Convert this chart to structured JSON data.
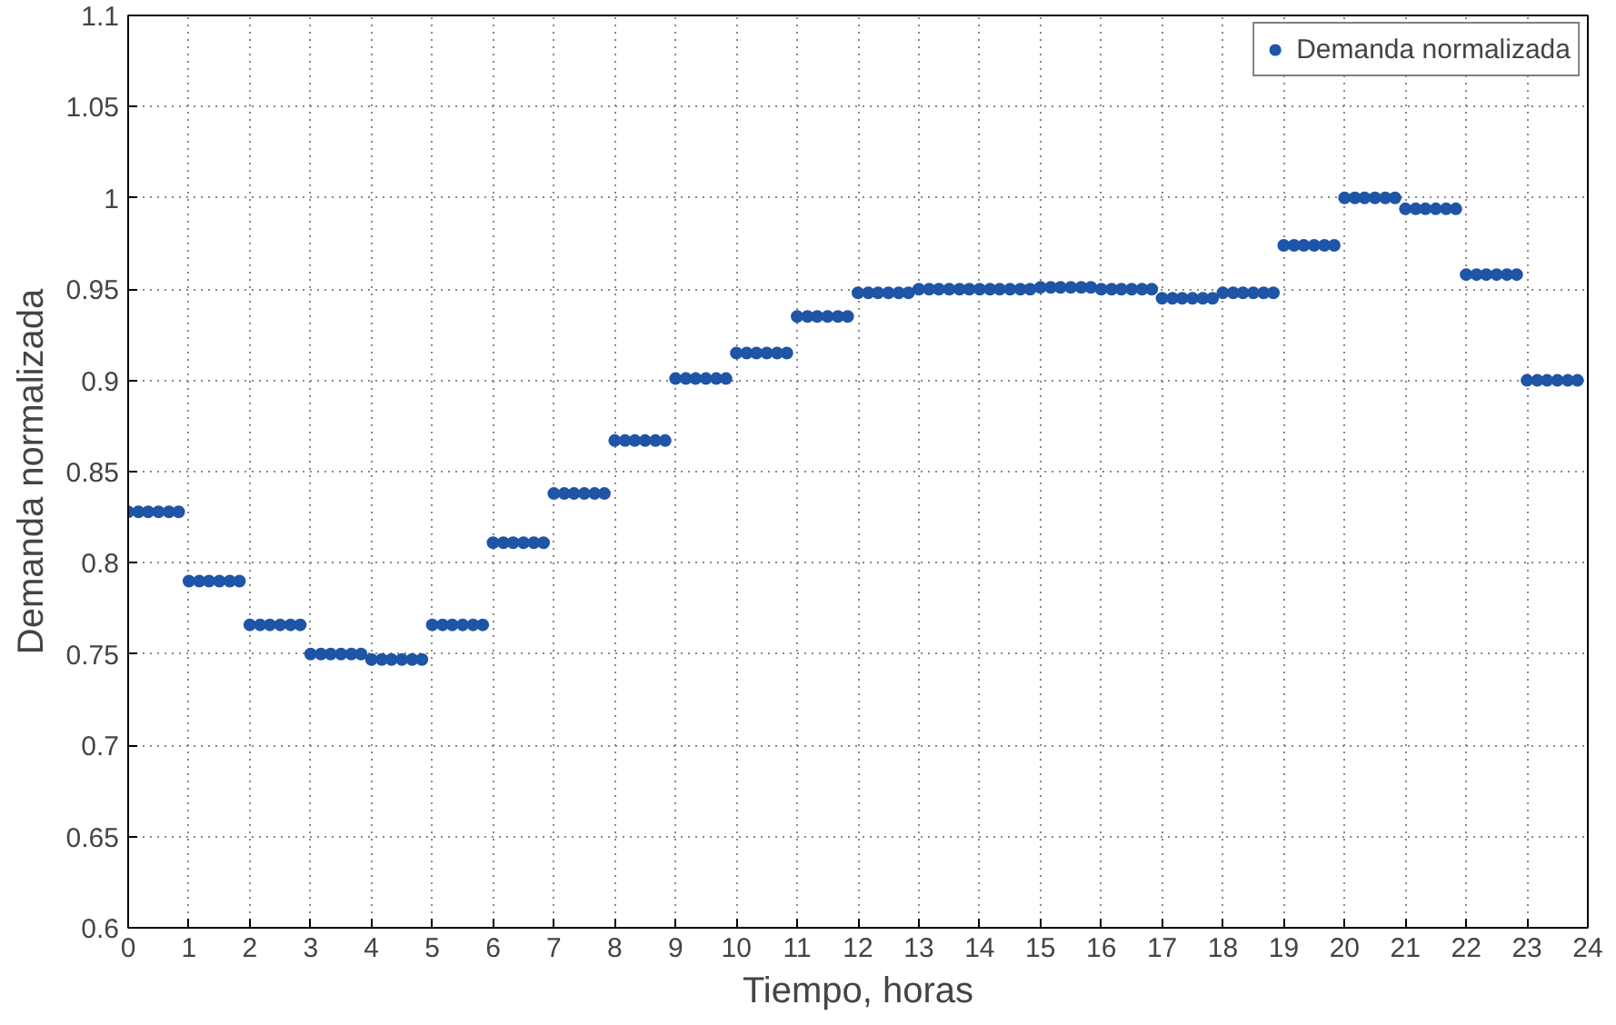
{
  "chart_data": {
    "type": "scatter",
    "xlabel": "Tiempo, horas",
    "ylabel": "Demanda normalizada",
    "xlim": [
      0,
      24
    ],
    "xticks": [
      0,
      1,
      2,
      3,
      4,
      5,
      6,
      7,
      8,
      9,
      10,
      11,
      12,
      13,
      14,
      15,
      16,
      17,
      18,
      19,
      20,
      21,
      22,
      23,
      24
    ],
    "ylim": [
      0.6,
      1.1
    ],
    "yticks": [
      0.6,
      0.65,
      0.7,
      0.75,
      0.8,
      0.85,
      0.9,
      0.95,
      1,
      1.05,
      1.1
    ],
    "grid": true,
    "legend": "top right",
    "marker": "circle",
    "series": [
      {
        "name": "Demanda normalizada",
        "color": "#1f55a6",
        "x": [
          0,
          0.17,
          0.33,
          0.5,
          0.67,
          0.83,
          1,
          1.17,
          1.33,
          1.5,
          1.67,
          1.83,
          2,
          2.17,
          2.33,
          2.5,
          2.67,
          2.83,
          3,
          3.17,
          3.33,
          3.5,
          3.67,
          3.83,
          4,
          4.17,
          4.33,
          4.5,
          4.67,
          4.83,
          5,
          5.17,
          5.33,
          5.5,
          5.67,
          5.83,
          6,
          6.17,
          6.33,
          6.5,
          6.67,
          6.83,
          7,
          7.17,
          7.33,
          7.5,
          7.67,
          7.83,
          8,
          8.17,
          8.33,
          8.5,
          8.67,
          8.83,
          9,
          9.17,
          9.33,
          9.5,
          9.67,
          9.83,
          10,
          10.17,
          10.33,
          10.5,
          10.67,
          10.83,
          11,
          11.17,
          11.33,
          11.5,
          11.67,
          11.83,
          12,
          12.17,
          12.33,
          12.5,
          12.67,
          12.83,
          13,
          13.17,
          13.33,
          13.5,
          13.67,
          13.83,
          14,
          14.17,
          14.33,
          14.5,
          14.67,
          14.83,
          15,
          15.17,
          15.33,
          15.5,
          15.67,
          15.83,
          16,
          16.17,
          16.33,
          16.5,
          16.67,
          16.83,
          17,
          17.17,
          17.33,
          17.5,
          17.67,
          17.83,
          18,
          18.17,
          18.33,
          18.5,
          18.67,
          18.83,
          19,
          19.17,
          19.33,
          19.5,
          19.67,
          19.83,
          20,
          20.17,
          20.33,
          20.5,
          20.67,
          20.83,
          21,
          21.17,
          21.33,
          21.5,
          21.67,
          21.83,
          22,
          22.17,
          22.33,
          22.5,
          22.67,
          22.83,
          23,
          23.17,
          23.33,
          23.5,
          23.67,
          23.83
        ],
        "values": [
          0.828,
          0.828,
          0.828,
          0.828,
          0.828,
          0.828,
          0.79,
          0.79,
          0.79,
          0.79,
          0.79,
          0.79,
          0.766,
          0.766,
          0.766,
          0.766,
          0.766,
          0.766,
          0.75,
          0.75,
          0.75,
          0.75,
          0.75,
          0.75,
          0.747,
          0.747,
          0.747,
          0.747,
          0.747,
          0.747,
          0.766,
          0.766,
          0.766,
          0.766,
          0.766,
          0.766,
          0.811,
          0.811,
          0.811,
          0.811,
          0.811,
          0.811,
          0.838,
          0.838,
          0.838,
          0.838,
          0.838,
          0.838,
          0.867,
          0.867,
          0.867,
          0.867,
          0.867,
          0.867,
          0.901,
          0.901,
          0.901,
          0.901,
          0.901,
          0.901,
          0.915,
          0.915,
          0.915,
          0.915,
          0.915,
          0.915,
          0.935,
          0.935,
          0.935,
          0.935,
          0.935,
          0.935,
          0.948,
          0.948,
          0.948,
          0.948,
          0.948,
          0.948,
          0.95,
          0.95,
          0.95,
          0.95,
          0.95,
          0.95,
          0.95,
          0.95,
          0.95,
          0.95,
          0.95,
          0.95,
          0.951,
          0.951,
          0.951,
          0.951,
          0.951,
          0.951,
          0.95,
          0.95,
          0.95,
          0.95,
          0.95,
          0.95,
          0.945,
          0.945,
          0.945,
          0.945,
          0.945,
          0.945,
          0.948,
          0.948,
          0.948,
          0.948,
          0.948,
          0.948,
          0.974,
          0.974,
          0.974,
          0.974,
          0.974,
          0.974,
          1,
          1,
          1,
          1,
          1,
          1,
          0.994,
          0.994,
          0.994,
          0.994,
          0.994,
          0.994,
          0.958,
          0.958,
          0.958,
          0.958,
          0.958,
          0.958,
          0.9,
          0.9,
          0.9,
          0.9,
          0.9,
          0.9
        ]
      }
    ]
  }
}
